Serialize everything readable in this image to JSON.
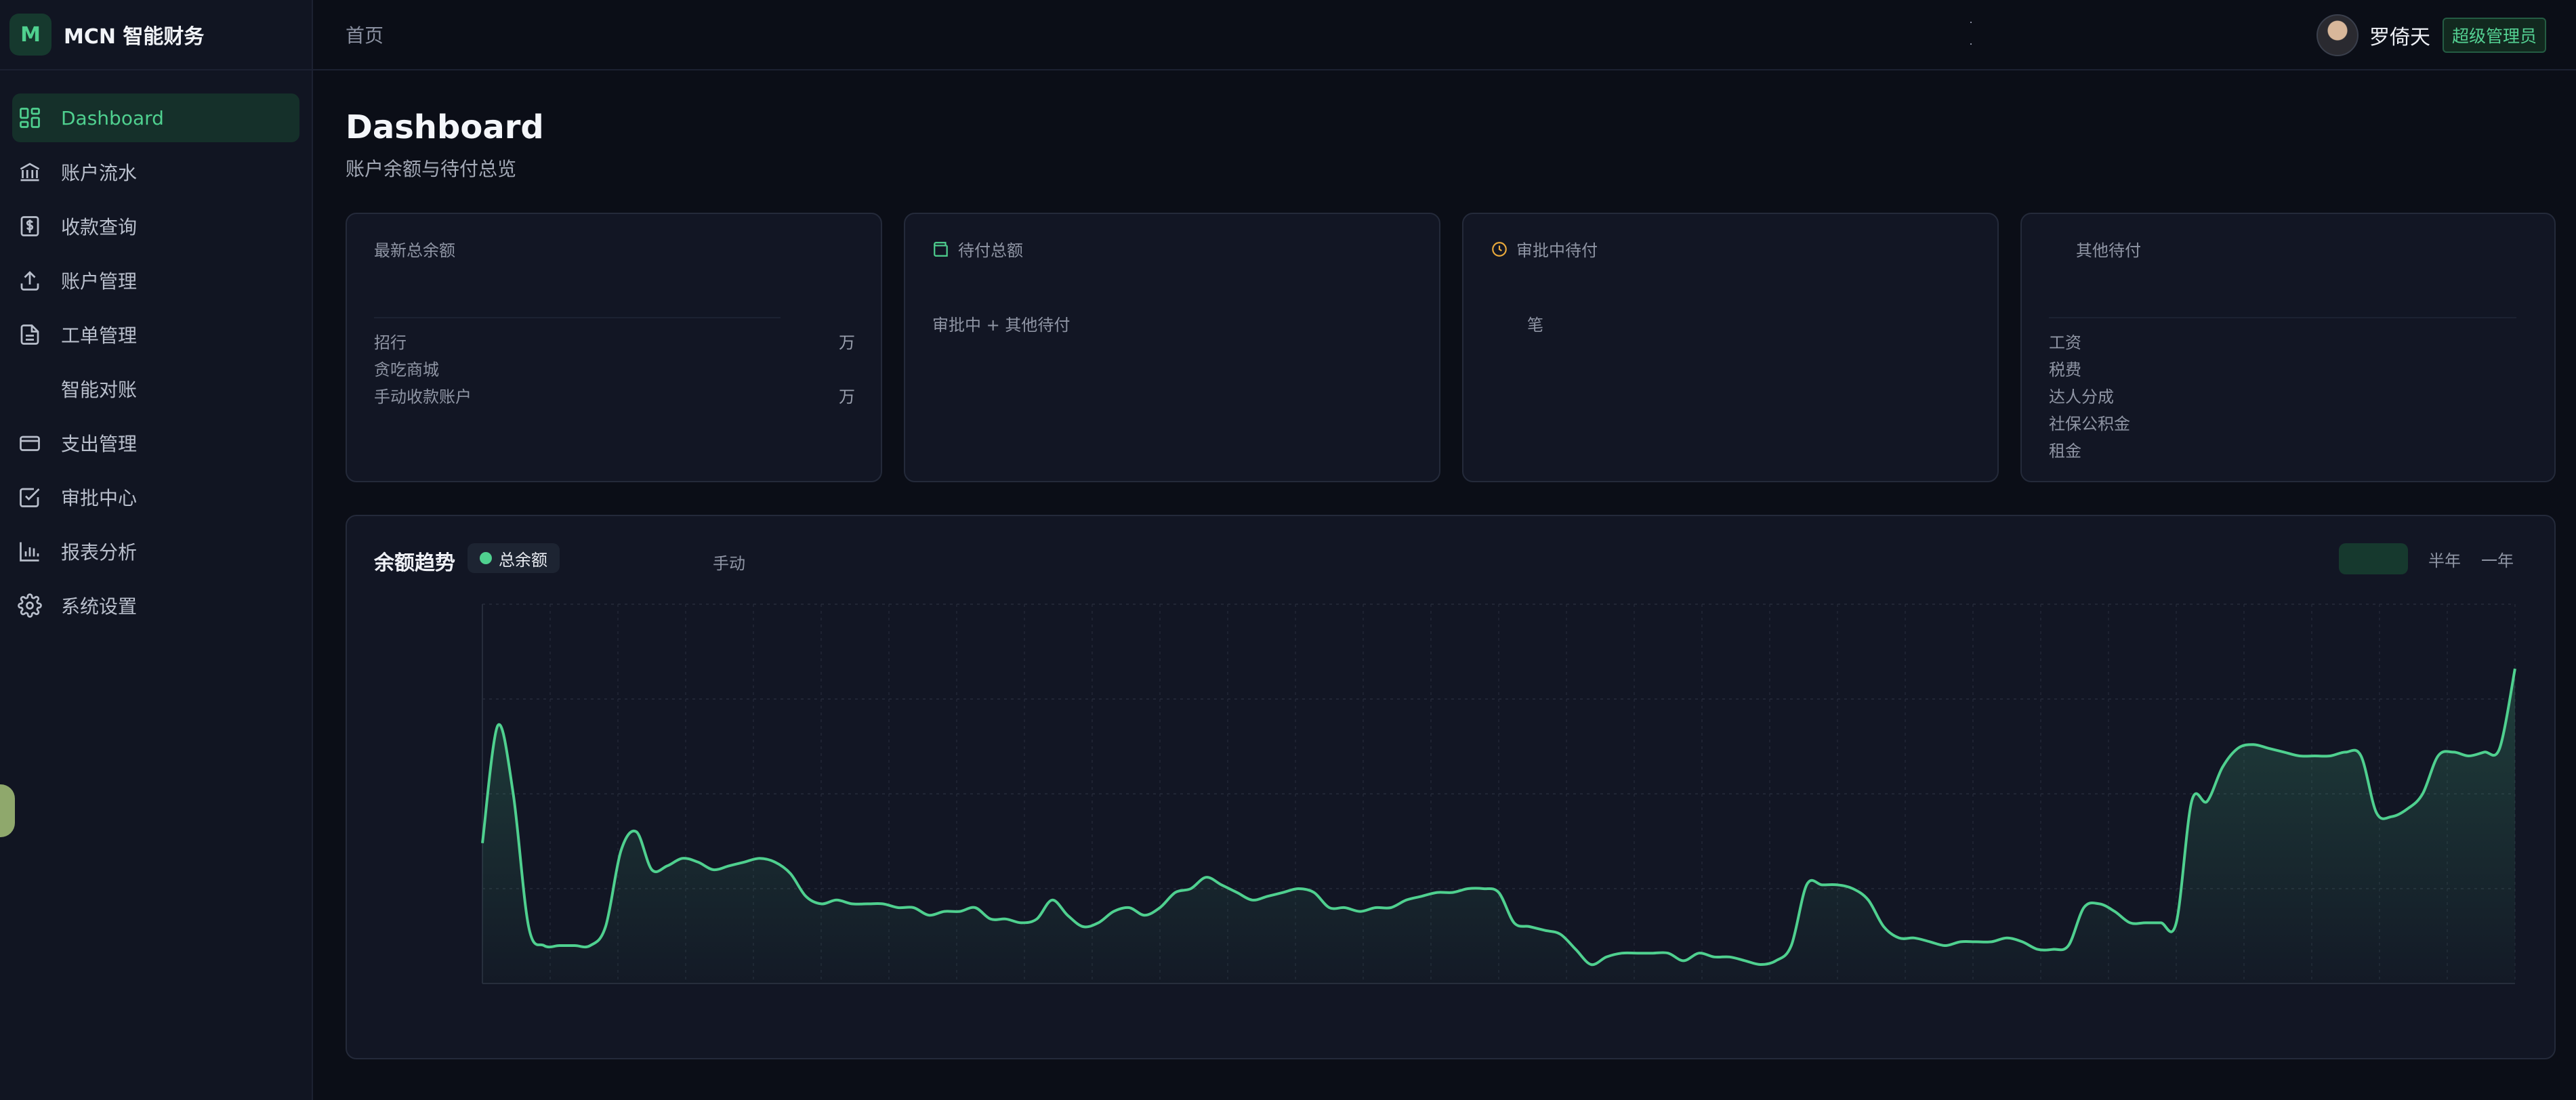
{
  "brand": {
    "logo_letter": "M",
    "name": "MCN 智能财务"
  },
  "sidebar": {
    "items": [
      {
        "label": "Dashboard",
        "icon": "dashboard-icon",
        "active": true
      },
      {
        "label": "账户流水",
        "icon": "bank-icon"
      },
      {
        "label": "收款查询",
        "icon": "dollar-receipt-icon"
      },
      {
        "label": "账户管理",
        "icon": "upload-icon"
      },
      {
        "label": "工单管理",
        "icon": "document-icon"
      },
      {
        "label": "智能对账",
        "icon": ""
      },
      {
        "label": "支出管理",
        "icon": "credit-card-icon"
      },
      {
        "label": "审批中心",
        "icon": "checkbox-icon"
      },
      {
        "label": "报表分析",
        "icon": "bar-chart-icon"
      },
      {
        "label": "系统设置",
        "icon": "gear-icon"
      }
    ]
  },
  "header": {
    "breadcrumb": "首页",
    "user_name": "罗倚天",
    "role": "超级管理员"
  },
  "page": {
    "title": "Dashboard",
    "subtitle": "账户余额与待付总览"
  },
  "cards": {
    "total_balance": {
      "title": "最新总余额",
      "rows": [
        {
          "label": "招行",
          "value": "万"
        },
        {
          "label": "贪吃商城",
          "value": ""
        },
        {
          "label": "手动收款账户",
          "value": "万"
        }
      ]
    },
    "total_pending": {
      "title": "待付总额",
      "icon": "wallet-icon",
      "subtitle": "审批中 + 其他待付"
    },
    "approval_pending": {
      "title": "审批中待付",
      "icon": "clock-icon",
      "subtitle": "笔"
    },
    "other_pending": {
      "title": "其他待付",
      "rows": [
        {
          "label": "工资"
        },
        {
          "label": "税费"
        },
        {
          "label": "达人分成"
        },
        {
          "label": "社保公积金"
        },
        {
          "label": "租金"
        }
      ]
    }
  },
  "chart_panel": {
    "title": "余额趋势",
    "manual_label": "手动",
    "range_tabs": [
      "",
      "半年",
      "一年"
    ],
    "colors": {
      "line": "#4fd08f",
      "grid": "#262c3b"
    }
  },
  "chart_data": {
    "type": "area",
    "series": [
      {
        "name": "总余额",
        "values": [
          0.37,
          0.68,
          0.5,
          0.15,
          0.1,
          0.1,
          0.1,
          0.1,
          0.15,
          0.35,
          0.4,
          0.3,
          0.31,
          0.33,
          0.32,
          0.3,
          0.31,
          0.32,
          0.33,
          0.32,
          0.29,
          0.23,
          0.21,
          0.22,
          0.21,
          0.21,
          0.21,
          0.2,
          0.2,
          0.18,
          0.19,
          0.19,
          0.2,
          0.17,
          0.17,
          0.16,
          0.17,
          0.22,
          0.18,
          0.15,
          0.16,
          0.19,
          0.2,
          0.18,
          0.2,
          0.24,
          0.25,
          0.28,
          0.26,
          0.24,
          0.22,
          0.23,
          0.24,
          0.25,
          0.24,
          0.2,
          0.2,
          0.19,
          0.2,
          0.2,
          0.22,
          0.23,
          0.24,
          0.24,
          0.25,
          0.25,
          0.24,
          0.16,
          0.15,
          0.14,
          0.13,
          0.09,
          0.05,
          0.07,
          0.08,
          0.08,
          0.08,
          0.08,
          0.06,
          0.08,
          0.07,
          0.07,
          0.06,
          0.05,
          0.06,
          0.1,
          0.26,
          0.26,
          0.26,
          0.25,
          0.22,
          0.15,
          0.12,
          0.12,
          0.11,
          0.1,
          0.11,
          0.11,
          0.11,
          0.12,
          0.11,
          0.09,
          0.09,
          0.1,
          0.2,
          0.21,
          0.19,
          0.16,
          0.16,
          0.16,
          0.16,
          0.48,
          0.48,
          0.57,
          0.62,
          0.63,
          0.62,
          0.61,
          0.6,
          0.6,
          0.6,
          0.61,
          0.6,
          0.45,
          0.44,
          0.46,
          0.5,
          0.6,
          0.61,
          0.6,
          0.61,
          0.62,
          0.83
        ]
      }
    ],
    "grid": true,
    "ylim": [
      0,
      1
    ]
  }
}
